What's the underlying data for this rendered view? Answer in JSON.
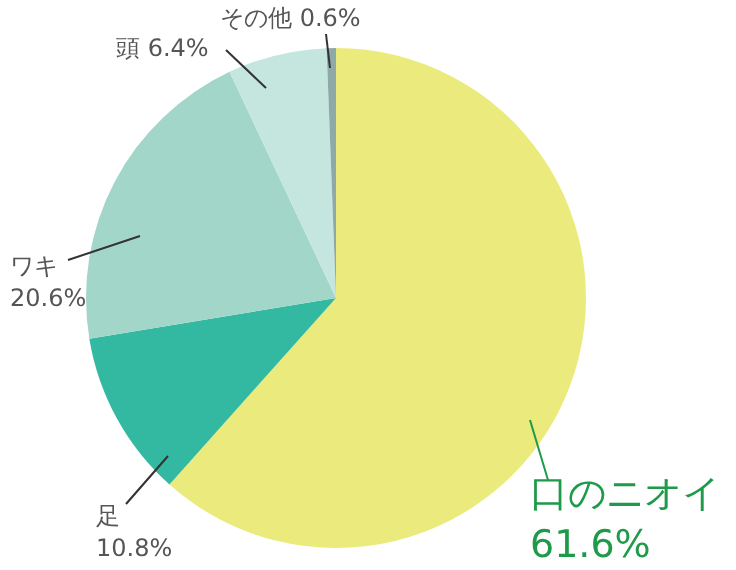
{
  "chart_data": {
    "type": "pie",
    "categories": [
      "口のニオイ",
      "足",
      "ワキ",
      "頭",
      "その他"
    ],
    "values": [
      61.6,
      10.8,
      20.6,
      6.4,
      0.6
    ],
    "value_labels": [
      "61.6%",
      "10.8%",
      "20.6%",
      "6.4%",
      "0.6%"
    ],
    "colors": [
      "#ebeb7d",
      "#33b8a2",
      "#a2d6c9",
      "#c5e6df",
      "#8fa9a8"
    ]
  }
}
